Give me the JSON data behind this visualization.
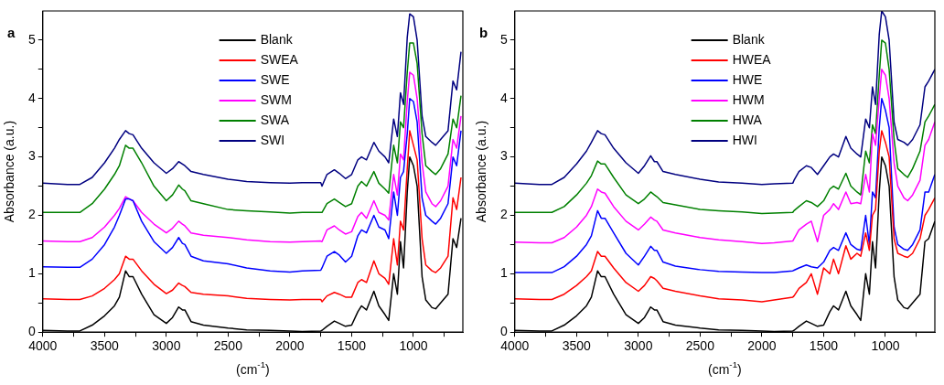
{
  "chart_data": [
    {
      "type": "line",
      "title": "a",
      "xlabel": "(cm$^{-1}$)",
      "ylabel": "Absorbance (a.u.)",
      "legend": "top",
      "grid": false,
      "marker": "none",
      "line_style": "solid",
      "xlim": [
        4000,
        600
      ],
      "ylim": [
        0,
        5.5
      ],
      "xticks": [
        4000,
        {
          "value": 3750,
          "label": null
        },
        3500,
        {
          "value": 3250,
          "label": null
        },
        3000,
        {
          "value": 2750,
          "label": null
        },
        2500,
        {
          "value": 2250,
          "label": null
        },
        2000,
        {
          "value": 1750,
          "label": null
        },
        1500,
        {
          "value": 1250,
          "label": null
        },
        1000,
        {
          "value": 750,
          "label": null
        }
      ],
      "yticks": [
        0,
        {
          "value": 0.5,
          "label": null
        },
        1,
        {
          "value": 1.5,
          "label": null
        },
        2,
        {
          "value": 2.5,
          "label": null
        },
        3,
        {
          "value": 3.5,
          "label": null
        },
        4,
        {
          "value": 4.5,
          "label": null
        },
        5
      ],
      "x": [
        4000,
        3800,
        3700,
        3600,
        3500,
        3420,
        3380,
        3330,
        3300,
        3270,
        3200,
        3100,
        3000,
        2950,
        2900,
        2870,
        2850,
        2800,
        2700,
        2500,
        2350,
        2160,
        2000,
        1900,
        1750,
        1740,
        1700,
        1640,
        1600,
        1550,
        1500,
        1450,
        1420,
        1380,
        1320,
        1280,
        1230,
        1200,
        1160,
        1130,
        1105,
        1080,
        1050,
        1030,
        1000,
        970,
        930,
        900,
        850,
        820,
        780,
        720,
        680,
        650,
        615
      ],
      "series": [
        {
          "name": "Blank",
          "color": "#000000",
          "values": [
            0.03,
            0.02,
            0.02,
            0.12,
            0.28,
            0.45,
            0.6,
            1.05,
            0.95,
            0.95,
            0.65,
            0.3,
            0.15,
            0.25,
            0.43,
            0.38,
            0.38,
            0.18,
            0.12,
            0.07,
            0.04,
            0.03,
            0.02,
            0.01,
            0.02,
            0.03,
            0.1,
            0.19,
            0.15,
            0.1,
            0.12,
            0.35,
            0.45,
            0.38,
            0.7,
            0.45,
            0.3,
            0.2,
            1.0,
            0.65,
            1.55,
            1.1,
            2.4,
            3.0,
            2.85,
            2.5,
            0.95,
            0.55,
            0.42,
            0.4,
            0.5,
            0.65,
            1.6,
            1.45,
            1.95
          ]
        },
        {
          "name": "SWEA",
          "color": "#ff0000",
          "values": [
            0.57,
            0.56,
            0.56,
            0.62,
            0.75,
            0.9,
            1.0,
            1.3,
            1.25,
            1.25,
            1.05,
            0.82,
            0.66,
            0.72,
            0.84,
            0.8,
            0.78,
            0.68,
            0.65,
            0.62,
            0.58,
            0.56,
            0.55,
            0.56,
            0.56,
            0.52,
            0.62,
            0.68,
            0.65,
            0.6,
            0.6,
            0.85,
            0.9,
            0.85,
            1.22,
            1.0,
            0.92,
            0.82,
            1.6,
            1.15,
            1.9,
            1.75,
            2.8,
            3.45,
            3.2,
            2.95,
            1.6,
            1.15,
            1.05,
            1.02,
            1.1,
            1.3,
            2.3,
            2.1,
            2.65
          ]
        },
        {
          "name": "SWE",
          "color": "#0000ff",
          "values": [
            1.12,
            1.11,
            1.11,
            1.25,
            1.5,
            1.8,
            2.0,
            2.28,
            2.28,
            2.25,
            1.9,
            1.55,
            1.35,
            1.45,
            1.62,
            1.52,
            1.5,
            1.3,
            1.22,
            1.17,
            1.1,
            1.05,
            1.03,
            1.05,
            1.06,
            1.1,
            1.3,
            1.38,
            1.32,
            1.2,
            1.3,
            1.65,
            1.75,
            1.7,
            2.0,
            1.8,
            1.75,
            1.6,
            2.4,
            2.0,
            2.65,
            2.75,
            3.4,
            4.0,
            3.95,
            3.6,
            2.3,
            2.0,
            1.9,
            1.85,
            1.95,
            2.2,
            3.0,
            2.85,
            3.45
          ]
        },
        {
          "name": "SWM",
          "color": "#ff00ff",
          "values": [
            1.56,
            1.55,
            1.55,
            1.62,
            1.8,
            2.0,
            2.12,
            2.32,
            2.28,
            2.25,
            2.05,
            1.85,
            1.7,
            1.78,
            1.9,
            1.85,
            1.82,
            1.7,
            1.66,
            1.62,
            1.58,
            1.55,
            1.54,
            1.55,
            1.56,
            1.55,
            1.75,
            1.82,
            1.75,
            1.68,
            1.72,
            1.98,
            2.05,
            1.95,
            2.25,
            2.05,
            2.0,
            1.92,
            2.7,
            2.35,
            3.05,
            2.95,
            3.95,
            4.45,
            4.4,
            4.0,
            2.9,
            2.4,
            2.2,
            2.15,
            2.25,
            2.5,
            3.3,
            3.15,
            3.7
          ]
        },
        {
          "name": "SWA",
          "color": "#008000",
          "values": [
            2.05,
            2.05,
            2.05,
            2.2,
            2.45,
            2.7,
            2.85,
            3.2,
            3.15,
            3.15,
            2.9,
            2.5,
            2.25,
            2.35,
            2.52,
            2.45,
            2.42,
            2.25,
            2.2,
            2.1,
            2.08,
            2.06,
            2.04,
            2.05,
            2.05,
            2.05,
            2.2,
            2.28,
            2.22,
            2.15,
            2.2,
            2.5,
            2.58,
            2.5,
            2.75,
            2.55,
            2.45,
            2.38,
            3.2,
            2.9,
            3.6,
            3.5,
            4.45,
            4.95,
            4.95,
            4.6,
            3.4,
            2.85,
            2.75,
            2.7,
            2.8,
            3.05,
            3.65,
            3.5,
            4.05
          ]
        },
        {
          "name": "SWI",
          "color": "#000080",
          "values": [
            2.55,
            2.53,
            2.53,
            2.65,
            2.9,
            3.15,
            3.3,
            3.45,
            3.4,
            3.38,
            3.15,
            2.9,
            2.72,
            2.8,
            2.92,
            2.88,
            2.85,
            2.75,
            2.7,
            2.62,
            2.58,
            2.56,
            2.55,
            2.56,
            2.56,
            2.5,
            2.7,
            2.78,
            2.72,
            2.63,
            2.7,
            2.95,
            3.0,
            2.95,
            3.25,
            3.1,
            3.0,
            2.9,
            3.65,
            3.35,
            4.1,
            3.9,
            5.05,
            5.45,
            5.4,
            5.0,
            3.7,
            3.35,
            3.25,
            3.2,
            3.3,
            3.45,
            4.3,
            4.15,
            4.8
          ]
        }
      ]
    },
    {
      "type": "line",
      "title": "b",
      "xlabel": "(cm$^{-1}$)",
      "ylabel": "Absorbance (a.u.)",
      "legend": "top",
      "grid": false,
      "marker": "none",
      "line_style": "solid",
      "xlim": [
        4000,
        600
      ],
      "ylim": [
        0,
        5.5
      ],
      "xticks": [
        4000,
        {
          "value": 3750,
          "label": null
        },
        3500,
        {
          "value": 3250,
          "label": null
        },
        3000,
        {
          "value": 2750,
          "label": null
        },
        2500,
        {
          "value": 2250,
          "label": null
        },
        2000,
        {
          "value": 1750,
          "label": null
        },
        1500,
        {
          "value": 1250,
          "label": null
        },
        1000,
        {
          "value": 750,
          "label": null
        }
      ],
      "yticks": [
        0,
        {
          "value": 0.5,
          "label": null
        },
        1,
        {
          "value": 1.5,
          "label": null
        },
        2,
        {
          "value": 2.5,
          "label": null
        },
        3,
        {
          "value": 3.5,
          "label": null
        },
        4,
        {
          "value": 4.5,
          "label": null
        },
        5
      ],
      "x": [
        4000,
        3800,
        3700,
        3600,
        3500,
        3420,
        3380,
        3330,
        3300,
        3270,
        3200,
        3100,
        3000,
        2950,
        2900,
        2870,
        2850,
        2800,
        2700,
        2500,
        2350,
        2160,
        2000,
        1900,
        1750,
        1740,
        1700,
        1640,
        1600,
        1550,
        1500,
        1450,
        1420,
        1380,
        1320,
        1280,
        1230,
        1200,
        1160,
        1130,
        1105,
        1080,
        1050,
        1030,
        1000,
        970,
        930,
        900,
        850,
        820,
        780,
        720,
        680,
        650,
        600
      ],
      "series": [
        {
          "name": "Blank",
          "color": "#000000",
          "values": [
            0.03,
            0.02,
            0.02,
            0.12,
            0.28,
            0.45,
            0.6,
            1.05,
            0.95,
            0.95,
            0.65,
            0.3,
            0.15,
            0.25,
            0.43,
            0.38,
            0.38,
            0.18,
            0.12,
            0.07,
            0.04,
            0.03,
            0.02,
            0.01,
            0.02,
            0.03,
            0.1,
            0.19,
            0.15,
            0.1,
            0.12,
            0.35,
            0.45,
            0.38,
            0.7,
            0.45,
            0.3,
            0.2,
            1.0,
            0.65,
            1.55,
            1.1,
            2.4,
            3.0,
            2.85,
            2.5,
            0.95,
            0.55,
            0.42,
            0.4,
            0.5,
            0.65,
            1.55,
            1.6,
            1.9
          ]
        },
        {
          "name": "HWEA",
          "color": "#ff0000",
          "values": [
            0.57,
            0.56,
            0.56,
            0.65,
            0.8,
            0.95,
            1.05,
            1.38,
            1.3,
            1.3,
            1.1,
            0.85,
            0.7,
            0.8,
            0.95,
            0.92,
            0.88,
            0.75,
            0.7,
            0.62,
            0.57,
            0.55,
            0.52,
            0.55,
            0.6,
            0.62,
            0.75,
            0.85,
            1.0,
            0.65,
            1.1,
            1.0,
            1.25,
            1.0,
            1.48,
            1.25,
            1.35,
            1.3,
            1.7,
            1.4,
            2.0,
            2.1,
            3.1,
            3.45,
            3.25,
            3.0,
            1.6,
            1.35,
            1.3,
            1.28,
            1.35,
            1.6,
            2.0,
            2.1,
            2.3
          ]
        },
        {
          "name": "HWE",
          "color": "#0000ff",
          "values": [
            1.02,
            1.02,
            1.02,
            1.12,
            1.3,
            1.5,
            1.65,
            2.08,
            1.95,
            1.95,
            1.7,
            1.35,
            1.15,
            1.3,
            1.47,
            1.4,
            1.4,
            1.2,
            1.13,
            1.07,
            1.04,
            1.03,
            1.02,
            1.02,
            1.05,
            1.06,
            1.1,
            1.15,
            1.12,
            1.1,
            1.2,
            1.4,
            1.45,
            1.4,
            1.7,
            1.5,
            1.42,
            1.4,
            2.0,
            1.5,
            2.4,
            2.3,
            3.5,
            4.0,
            3.8,
            3.5,
            1.8,
            1.5,
            1.42,
            1.4,
            1.5,
            1.75,
            2.4,
            2.4,
            2.7
          ]
        },
        {
          "name": "HWM",
          "color": "#ff00ff",
          "values": [
            1.54,
            1.53,
            1.53,
            1.62,
            1.8,
            2.0,
            2.15,
            2.45,
            2.4,
            2.38,
            2.15,
            1.9,
            1.75,
            1.85,
            1.97,
            1.92,
            1.9,
            1.75,
            1.7,
            1.62,
            1.58,
            1.55,
            1.52,
            1.53,
            1.56,
            1.6,
            1.75,
            1.85,
            1.9,
            1.55,
            2.0,
            2.1,
            2.2,
            2.1,
            2.4,
            2.2,
            2.22,
            2.2,
            2.7,
            2.4,
            3.4,
            3.2,
            4.0,
            4.5,
            4.4,
            4.0,
            2.9,
            2.5,
            2.3,
            2.25,
            2.35,
            2.6,
            3.2,
            3.3,
            3.6
          ]
        },
        {
          "name": "HWA",
          "color": "#008000",
          "values": [
            2.05,
            2.05,
            2.05,
            2.15,
            2.35,
            2.55,
            2.68,
            2.93,
            2.88,
            2.88,
            2.65,
            2.35,
            2.2,
            2.28,
            2.4,
            2.35,
            2.32,
            2.22,
            2.18,
            2.1,
            2.08,
            2.06,
            2.03,
            2.04,
            2.05,
            2.08,
            2.15,
            2.25,
            2.22,
            2.15,
            2.25,
            2.45,
            2.5,
            2.45,
            2.72,
            2.5,
            2.4,
            2.35,
            3.1,
            2.9,
            3.55,
            3.4,
            4.4,
            5.0,
            4.95,
            4.5,
            3.3,
            2.8,
            2.7,
            2.65,
            2.8,
            3.1,
            3.6,
            3.7,
            3.9
          ]
        },
        {
          "name": "HWI",
          "color": "#000080",
          "values": [
            2.55,
            2.53,
            2.53,
            2.65,
            2.88,
            3.1,
            3.25,
            3.45,
            3.4,
            3.38,
            3.15,
            2.9,
            2.72,
            2.85,
            3.02,
            2.92,
            2.92,
            2.75,
            2.7,
            2.62,
            2.57,
            2.55,
            2.53,
            2.54,
            2.55,
            2.6,
            2.75,
            2.85,
            2.82,
            2.7,
            2.85,
            3.0,
            3.05,
            3.0,
            3.35,
            3.15,
            3.05,
            3.0,
            3.65,
            3.5,
            4.2,
            3.9,
            5.1,
            5.5,
            5.4,
            5.0,
            3.6,
            3.3,
            3.25,
            3.2,
            3.3,
            3.55,
            4.2,
            4.3,
            4.5
          ]
        }
      ]
    }
  ]
}
